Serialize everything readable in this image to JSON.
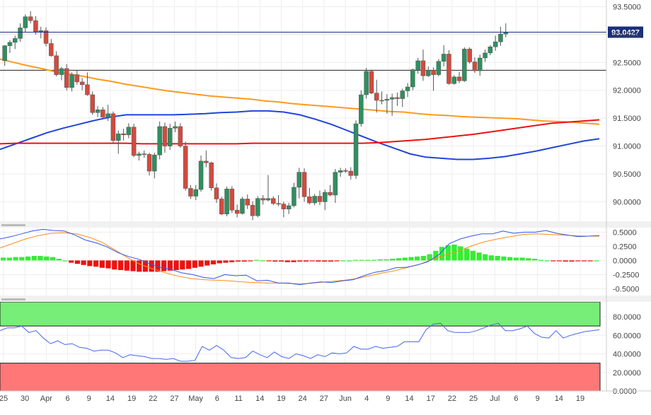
{
  "chart_data": [
    {
      "type": "candlestick",
      "title": "",
      "ylim": [
        89.65,
        93.62
      ],
      "y_ticks": [
        "93.5000",
        "93.0000",
        "92.5000",
        "92.0000",
        "91.5000",
        "91.0000",
        "90.5000",
        "90.0000"
      ],
      "y_tick_values": [
        93.5,
        93.0,
        92.5,
        92.0,
        91.5,
        91.0,
        90.5,
        90.0
      ],
      "last_price_label": "93.0427",
      "last_price": 93.0427,
      "horizontal_level": 92.36,
      "candles": [
        [
          92.53,
          92.81,
          92.44,
          92.8
        ],
        [
          92.8,
          92.9,
          92.67,
          92.86
        ],
        [
          92.86,
          92.98,
          92.74,
          92.93
        ],
        [
          92.93,
          93.2,
          92.87,
          93.12
        ],
        [
          93.12,
          93.36,
          93.05,
          93.32
        ],
        [
          93.32,
          93.42,
          93.2,
          93.25
        ],
        [
          93.25,
          93.33,
          93.0,
          93.05
        ],
        [
          93.05,
          93.14,
          92.93,
          93.07
        ],
        [
          93.07,
          93.13,
          92.79,
          92.84
        ],
        [
          92.84,
          92.92,
          92.6,
          92.62
        ],
        [
          92.62,
          92.7,
          92.25,
          92.28
        ],
        [
          92.28,
          92.42,
          92.18,
          92.39
        ],
        [
          92.39,
          92.47,
          92.0,
          92.05
        ],
        [
          92.05,
          92.32,
          91.98,
          92.28
        ],
        [
          92.28,
          92.36,
          92.1,
          92.15
        ],
        [
          92.15,
          92.22,
          92.0,
          92.1
        ],
        [
          92.1,
          92.32,
          91.9,
          91.92
        ],
        [
          91.92,
          91.98,
          91.56,
          91.6
        ],
        [
          91.6,
          91.72,
          91.52,
          91.65
        ],
        [
          91.65,
          91.7,
          91.5,
          91.52
        ],
        [
          91.52,
          91.74,
          91.45,
          91.58
        ],
        [
          91.58,
          91.62,
          91.05,
          91.1
        ],
        [
          91.1,
          91.28,
          90.86,
          91.22
        ],
        [
          91.22,
          91.31,
          91.1,
          91.2
        ],
        [
          91.2,
          91.41,
          91.14,
          91.34
        ],
        [
          91.34,
          91.4,
          90.8,
          90.83
        ],
        [
          90.83,
          90.9,
          90.74,
          90.86
        ],
        [
          90.86,
          90.92,
          90.79,
          90.85
        ],
        [
          90.85,
          90.88,
          90.47,
          90.55
        ],
        [
          90.55,
          90.88,
          90.42,
          90.84
        ],
        [
          90.84,
          91.44,
          90.76,
          91.35
        ],
        [
          91.35,
          91.42,
          90.88,
          91.0
        ],
        [
          91.0,
          91.4,
          90.93,
          91.32
        ],
        [
          91.32,
          91.44,
          91.25,
          91.35
        ],
        [
          91.35,
          91.41,
          90.97,
          91.0
        ],
        [
          91.0,
          91.08,
          90.2,
          90.24
        ],
        [
          90.24,
          90.3,
          90.05,
          90.1
        ],
        [
          90.1,
          90.3,
          90.03,
          90.22
        ],
        [
          90.22,
          90.83,
          90.18,
          90.73
        ],
        [
          90.73,
          90.92,
          90.62,
          90.7
        ],
        [
          90.7,
          90.72,
          90.2,
          90.25
        ],
        [
          90.25,
          90.33,
          89.98,
          90.05
        ],
        [
          90.05,
          90.09,
          89.76,
          89.78
        ],
        [
          89.78,
          90.27,
          89.74,
          90.23
        ],
        [
          90.23,
          90.28,
          89.8,
          89.85
        ],
        [
          89.85,
          89.95,
          89.72,
          89.79
        ],
        [
          89.79,
          90.09,
          89.77,
          90.05
        ],
        [
          90.05,
          90.13,
          89.87,
          89.94
        ],
        [
          89.94,
          90.01,
          89.67,
          89.75
        ],
        [
          89.75,
          90.1,
          89.72,
          90.06
        ],
        [
          90.06,
          90.12,
          89.95,
          90.03
        ],
        [
          90.03,
          90.48,
          90.01,
          90.06
        ],
        [
          90.06,
          90.1,
          89.94,
          89.97
        ],
        [
          89.97,
          90.12,
          89.92,
          89.96
        ],
        [
          89.96,
          90.0,
          89.72,
          89.87
        ],
        [
          89.87,
          89.98,
          89.78,
          89.93
        ],
        [
          89.93,
          90.34,
          89.9,
          90.26
        ],
        [
          90.26,
          90.61,
          90.06,
          90.53
        ],
        [
          90.53,
          90.6,
          90.0,
          90.09
        ],
        [
          90.09,
          90.25,
          89.95,
          89.98
        ],
        [
          89.98,
          90.14,
          89.94,
          90.1
        ],
        [
          90.1,
          90.2,
          89.94,
          90.0
        ],
        [
          90.0,
          90.22,
          89.85,
          90.17
        ],
        [
          90.17,
          90.3,
          90.1,
          90.12
        ],
        [
          90.12,
          90.59,
          89.98,
          90.53
        ],
        [
          90.53,
          90.61,
          90.45,
          90.56
        ],
        [
          90.56,
          90.6,
          90.52,
          90.55
        ],
        [
          90.55,
          90.62,
          90.4,
          90.47
        ],
        [
          90.47,
          91.46,
          90.41,
          91.4
        ],
        [
          91.4,
          92.0,
          91.35,
          91.92
        ],
        [
          91.92,
          92.4,
          91.85,
          92.34
        ],
        [
          92.34,
          92.37,
          91.93,
          91.95
        ],
        [
          91.95,
          92.19,
          91.6,
          91.82
        ],
        [
          91.82,
          91.98,
          91.75,
          91.82
        ],
        [
          91.82,
          91.93,
          91.58,
          91.84
        ],
        [
          91.84,
          91.94,
          91.54,
          91.87
        ],
        [
          91.87,
          91.96,
          91.72,
          91.85
        ],
        [
          91.85,
          92.03,
          91.7,
          91.99
        ],
        [
          91.99,
          92.13,
          91.88,
          92.06
        ],
        [
          92.06,
          92.39,
          92.0,
          92.37
        ],
        [
          92.37,
          92.58,
          92.3,
          92.53
        ],
        [
          92.53,
          92.73,
          92.17,
          92.26
        ],
        [
          92.26,
          92.43,
          92.24,
          92.36
        ],
        [
          92.36,
          92.41,
          91.99,
          92.28
        ],
        [
          92.28,
          92.56,
          92.25,
          92.52
        ],
        [
          92.52,
          92.81,
          92.43,
          92.65
        ],
        [
          92.65,
          92.72,
          92.1,
          92.12
        ],
        [
          92.12,
          92.27,
          92.1,
          92.24
        ],
        [
          92.24,
          92.33,
          92.13,
          92.17
        ],
        [
          92.17,
          92.77,
          92.15,
          92.74
        ],
        [
          92.74,
          92.77,
          92.48,
          92.51
        ],
        [
          92.51,
          92.59,
          92.31,
          92.35
        ],
        [
          92.35,
          92.64,
          92.26,
          92.58
        ],
        [
          92.58,
          92.73,
          92.51,
          92.67
        ],
        [
          92.67,
          92.81,
          92.63,
          92.78
        ],
        [
          92.78,
          92.98,
          92.71,
          92.87
        ],
        [
          92.87,
          93.14,
          92.8,
          93.01
        ],
        [
          93.01,
          93.2,
          92.95,
          93.04
        ]
      ],
      "series": [
        {
          "name": "",
          "color": "#ff9a1f",
          "y": [
            92.56,
            92.5,
            92.44,
            92.39,
            92.33,
            92.29,
            92.25,
            92.2,
            92.16,
            92.11,
            92.07,
            92.03,
            91.99,
            91.96,
            91.93,
            91.9,
            91.88,
            91.86,
            91.84,
            91.81,
            91.79,
            91.76,
            91.74,
            91.72,
            91.7,
            91.68,
            91.66,
            91.64,
            91.62,
            91.61,
            91.58,
            91.56,
            91.55,
            91.53,
            91.52,
            91.51,
            91.5,
            91.49,
            91.47,
            91.45,
            91.44,
            91.43,
            91.41,
            91.39
          ]
        },
        {
          "name": "",
          "color": "#2244dd",
          "y": [
            90.94,
            91.04,
            91.14,
            91.24,
            91.32,
            91.39,
            91.46,
            91.52,
            91.56,
            91.56,
            91.56,
            91.56,
            91.57,
            91.58,
            91.6,
            91.61,
            91.63,
            91.63,
            91.61,
            91.56,
            91.48,
            91.39,
            91.28,
            91.17,
            91.06,
            90.96,
            90.86,
            90.8,
            90.78,
            90.76,
            90.76,
            90.78,
            90.81,
            90.86,
            90.91,
            90.97,
            91.03,
            91.09,
            91.13
          ]
        },
        {
          "name": "",
          "color": "#ee1111",
          "y": [
            91.04,
            91.05,
            91.05,
            91.05,
            91.05,
            91.05,
            91.05,
            91.05,
            91.05,
            91.04,
            91.04,
            91.04,
            91.04,
            91.04,
            91.04,
            91.04,
            91.05,
            91.05,
            91.05,
            91.05,
            91.05,
            91.05,
            91.05,
            91.05,
            91.06,
            91.08,
            91.1,
            91.12,
            91.15,
            91.18,
            91.21,
            91.25,
            91.29,
            91.33,
            91.37,
            91.41,
            91.43,
            91.45,
            91.47
          ]
        }
      ]
    },
    {
      "type": "bar+line",
      "ylim": [
        -0.62,
        0.58
      ],
      "y_ticks": [
        "0.5000",
        "0.2500",
        "0.0000",
        "-0.2500",
        "-0.5000"
      ],
      "y_tick_values": [
        0.5,
        0.25,
        0.0,
        -0.25,
        -0.5
      ],
      "colors": {
        "positive": "#33ee33",
        "negative": "#ee1111"
      },
      "histogram": [
        0.05,
        0.05,
        0.06,
        0.06,
        0.07,
        0.08,
        0.08,
        0.07,
        0.06,
        0.03,
        0.0,
        -0.04,
        -0.06,
        -0.08,
        -0.1,
        -0.11,
        -0.13,
        -0.14,
        -0.16,
        -0.17,
        -0.18,
        -0.19,
        -0.2,
        -0.2,
        -0.2,
        -0.2,
        -0.19,
        -0.18,
        -0.17,
        -0.16,
        -0.15,
        -0.13,
        -0.11,
        -0.09,
        -0.07,
        -0.05,
        -0.04,
        -0.03,
        -0.02,
        -0.02,
        -0.01,
        0.01,
        0.0,
        -0.01,
        -0.02,
        -0.02,
        -0.03,
        -0.03,
        -0.02,
        -0.02,
        -0.01,
        -0.02,
        -0.02,
        -0.02,
        -0.01,
        0.0,
        0.0,
        0.01,
        0.01,
        0.01,
        0.01,
        0.02,
        0.02,
        0.03,
        0.04,
        0.05,
        0.06,
        0.07,
        0.08,
        0.11,
        0.17,
        0.24,
        0.27,
        0.28,
        0.25,
        0.21,
        0.17,
        0.14,
        0.11,
        0.09,
        0.08,
        0.07,
        0.06,
        0.05,
        0.05,
        0.04,
        0.03,
        0.01,
        0.0,
        -0.01,
        -0.01,
        -0.02,
        -0.02,
        -0.01,
        -0.01,
        -0.01,
        0.0
      ],
      "series": [
        {
          "name": "",
          "color": "#3355ee",
          "y": [
            0.38,
            0.42,
            0.47,
            0.52,
            0.55,
            0.53,
            0.52,
            0.45,
            0.36,
            0.31,
            0.24,
            0.14,
            0.07,
            0.02,
            -0.06,
            -0.12,
            -0.16,
            -0.22,
            -0.25,
            -0.3,
            -0.32,
            -0.25,
            -0.27,
            -0.26,
            -0.36,
            -0.35,
            -0.4,
            -0.4,
            -0.43,
            -0.4,
            -0.38,
            -0.39,
            -0.36,
            -0.34,
            -0.27,
            -0.21,
            -0.18,
            -0.13,
            -0.12,
            -0.08,
            -0.02,
            0.1,
            0.3,
            0.38,
            0.43,
            0.47,
            0.47,
            0.52,
            0.48,
            0.5,
            0.5,
            0.53,
            0.48,
            0.45,
            0.42,
            0.43,
            0.44
          ]
        },
        {
          "name": "",
          "color": "#ff8c1a",
          "y": [
            0.22,
            0.3,
            0.38,
            0.44,
            0.48,
            0.49,
            0.47,
            0.41,
            0.32,
            0.19,
            0.05,
            -0.07,
            -0.15,
            -0.22,
            -0.28,
            -0.32,
            -0.34,
            -0.35,
            -0.36,
            -0.38,
            -0.39,
            -0.4,
            -0.4,
            -0.41,
            -0.41,
            -0.39,
            -0.37,
            -0.35,
            -0.32,
            -0.27,
            -0.22,
            -0.18,
            -0.12,
            -0.06,
            0.03,
            0.1,
            0.17,
            0.26,
            0.33,
            0.38,
            0.42,
            0.46,
            0.47,
            0.46,
            0.45,
            0.44,
            0.43,
            0.43
          ]
        }
      ]
    },
    {
      "type": "line",
      "ylim": [
        0,
        96
      ],
      "y_ticks": [
        "80.0000",
        "60.0000",
        "40.0000",
        "20.0000",
        "0.0000"
      ],
      "y_tick_values": [
        80,
        60,
        40,
        20,
        0
      ],
      "overbought_zone": [
        70,
        96
      ],
      "oversold_zone": [
        0,
        30
      ],
      "zone_colors": {
        "overbought": "#77ee77",
        "oversold": "#ff7777"
      },
      "series": [
        {
          "name": "",
          "color": "#4466ee",
          "y": [
            65,
            68,
            68,
            70,
            63,
            65,
            57,
            51,
            54,
            50,
            51,
            47,
            46,
            43,
            44,
            44,
            41,
            36,
            39,
            38,
            37,
            35,
            35,
            34,
            35,
            32,
            32,
            33,
            48,
            44,
            49,
            44,
            36,
            35,
            36,
            43,
            39,
            36,
            42,
            37,
            35,
            40,
            38,
            35,
            39,
            37,
            41,
            40,
            41,
            48,
            45,
            45,
            48,
            46,
            47,
            48,
            53,
            53,
            53,
            66,
            72,
            73,
            65,
            63,
            63,
            63,
            65,
            68,
            71,
            73,
            65,
            65,
            67,
            70,
            62,
            58,
            57,
            65,
            57,
            60,
            62,
            64,
            65,
            66
          ]
        }
      ]
    }
  ],
  "x_tick_labels": [
    "25",
    "30",
    "Apr",
    "6",
    "9",
    "14",
    "19",
    "22",
    "27",
    "May",
    "6",
    "11",
    "14",
    "19",
    "24",
    "27",
    "Jun",
    "4",
    "9",
    "14",
    "17",
    "22",
    "25",
    "Jul",
    "6",
    "9",
    "14",
    "19"
  ]
}
